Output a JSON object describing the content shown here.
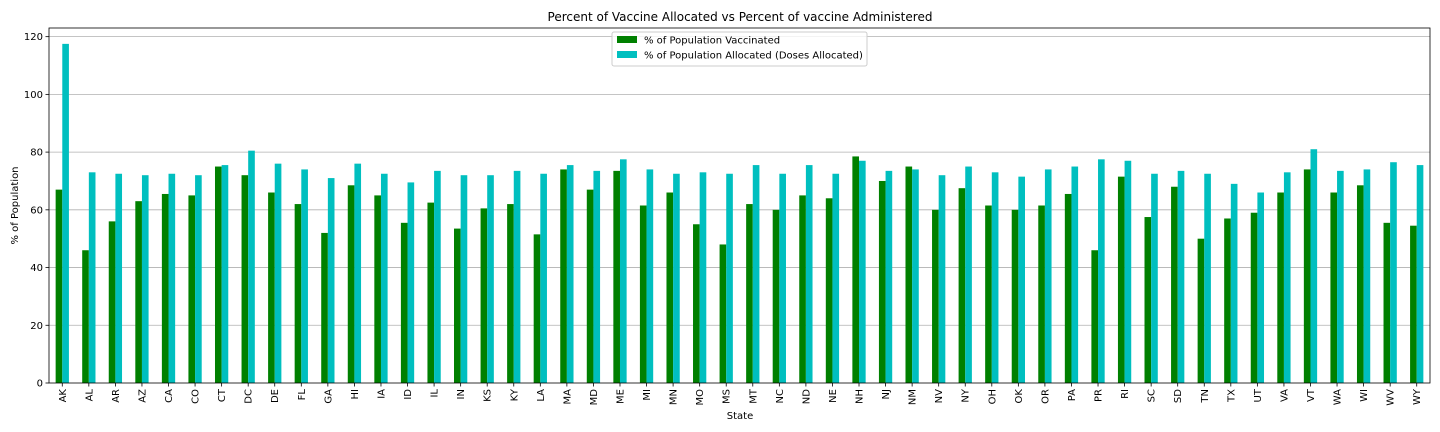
{
  "chart_data": {
    "type": "bar",
    "title": "Percent of Vaccine Allocated vs Percent of vaccine Administered",
    "xlabel": "State",
    "ylabel": "% of Population",
    "ylim": [
      0,
      123
    ],
    "yticks": [
      0,
      20,
      40,
      60,
      80,
      100,
      120
    ],
    "grid": "horizontal",
    "legend_position": "top-center",
    "categories": [
      "AK",
      "AL",
      "AR",
      "AZ",
      "CA",
      "CO",
      "CT",
      "DC",
      "DE",
      "FL",
      "GA",
      "HI",
      "IA",
      "ID",
      "IL",
      "IN",
      "KS",
      "KY",
      "LA",
      "MA",
      "MD",
      "ME",
      "MI",
      "MN",
      "MO",
      "MS",
      "MT",
      "NC",
      "ND",
      "NE",
      "NH",
      "NJ",
      "NM",
      "NV",
      "NY",
      "OH",
      "OK",
      "OR",
      "PA",
      "PR",
      "RI",
      "SC",
      "SD",
      "TN",
      "TX",
      "UT",
      "VA",
      "VT",
      "WA",
      "WI",
      "WV",
      "WY"
    ],
    "series": [
      {
        "name": "% of Population Vaccinated",
        "color": "#008000",
        "values": [
          67,
          46,
          56,
          63,
          65.5,
          65,
          75,
          72,
          66,
          62,
          52,
          68.5,
          65,
          55.5,
          62.5,
          53.5,
          60.5,
          62,
          51.5,
          74,
          67,
          73.5,
          61.5,
          66,
          55,
          48,
          62,
          60,
          65,
          64,
          78.5,
          70,
          75,
          60,
          67.5,
          61.5,
          60,
          61.5,
          65.5,
          46,
          71.5,
          57.5,
          68,
          50,
          57,
          59,
          66,
          74,
          66,
          68.5,
          55.5,
          54.5
        ]
      },
      {
        "name": "% of Population Allocated (Doses Allocated)",
        "color": "#00bfbf",
        "values": [
          117.5,
          73,
          72.5,
          72,
          72.5,
          72,
          75.5,
          80.5,
          76,
          74,
          71,
          76,
          72.5,
          69.5,
          73.5,
          72,
          72,
          73.5,
          72.5,
          75.5,
          73.5,
          77.5,
          74,
          72.5,
          73,
          72.5,
          75.5,
          72.5,
          75.5,
          72.5,
          77,
          73.5,
          74,
          72,
          75,
          73,
          71.5,
          74,
          75,
          77.5,
          77,
          72.5,
          73.5,
          72.5,
          69,
          66,
          73,
          81,
          73.5,
          74,
          76.5,
          75.5
        ]
      }
    ]
  }
}
